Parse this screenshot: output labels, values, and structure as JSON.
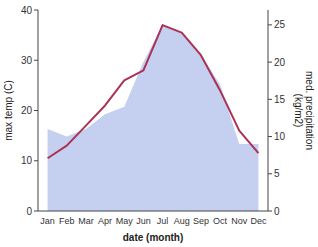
{
  "chart_data": {
    "type": "line",
    "categories": [
      "Jan",
      "Feb",
      "Mar",
      "Apr",
      "May",
      "Jun",
      "Jul",
      "Aug",
      "Sep",
      "Oct",
      "Nov",
      "Dec"
    ],
    "xlabel": "date (month)",
    "ylabel": "max temp (C)",
    "y2label": "med. precipitation\n(kg/m2)",
    "ylim": [
      0,
      40
    ],
    "yticks": [
      0,
      10,
      20,
      30,
      40
    ],
    "y2lim": [
      0,
      27
    ],
    "y2ticks": [
      0,
      5,
      10,
      15,
      20,
      25
    ],
    "series": [
      {
        "type": "area",
        "axis": "y2",
        "color": "#c5cff0",
        "values": [
          11,
          10,
          11,
          13,
          14,
          20,
          25,
          24,
          21,
          17,
          9,
          9
        ]
      },
      {
        "type": "line",
        "color": "#aa3355",
        "values": [
          10.5,
          13.0,
          17.0,
          21.0,
          26.0,
          28.0,
          37.0,
          35.5,
          31.0,
          24.0,
          16.0,
          11.5
        ]
      }
    ]
  }
}
